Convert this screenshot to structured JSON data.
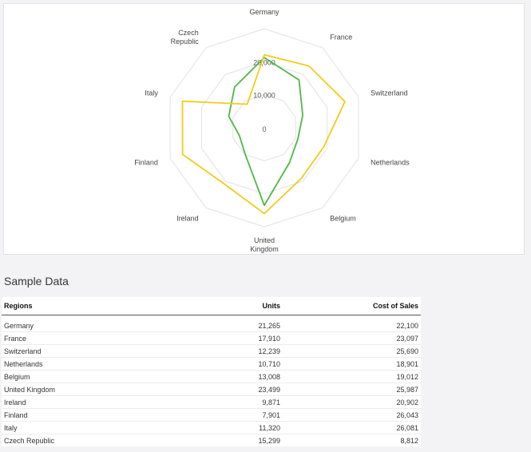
{
  "chart_data": {
    "type": "radar",
    "categories": [
      "Germany",
      "France",
      "Switzerland",
      "Netherlands",
      "Belgium",
      "United Kingdom",
      "Ireland",
      "Finland",
      "Italy",
      "Czech Republic"
    ],
    "category_labels": [
      [
        "Germany"
      ],
      [
        "France"
      ],
      [
        "Switzerland"
      ],
      [
        "Netherlands"
      ],
      [
        "Belgium"
      ],
      [
        "United",
        "Kingdom"
      ],
      [
        "Ireland"
      ],
      [
        "Finland"
      ],
      [
        "Italy"
      ],
      [
        "Czech",
        "Republic"
      ]
    ],
    "series": [
      {
        "color": "#4fb844",
        "values": [
          21265,
          17910,
          12239,
          10710,
          13008,
          23499,
          9871,
          7901,
          11320,
          15299
        ]
      },
      {
        "color": "#f2cc1a",
        "values": [
          22100,
          23097,
          25690,
          18901,
          19012,
          25987,
          20902,
          26043,
          26081,
          8812
        ]
      }
    ],
    "rlim": [
      0,
      30000
    ],
    "ticks": [
      "0",
      "10,000",
      "20,000"
    ],
    "tick_values": [
      0,
      10000,
      20000
    ],
    "grid": true
  },
  "table": {
    "title": "Sample Data",
    "headers": {
      "region": "Regions",
      "units": "Units",
      "cost": "Cost of Sales"
    },
    "rows": [
      {
        "region": "Germany",
        "units": "21,265",
        "cost": "22,100"
      },
      {
        "region": "France",
        "units": "17,910",
        "cost": "23,097"
      },
      {
        "region": "Switzerland",
        "units": "12,239",
        "cost": "25,690"
      },
      {
        "region": "Netherlands",
        "units": "10,710",
        "cost": "18,901"
      },
      {
        "region": "Belgium",
        "units": "13,008",
        "cost": "19,012"
      },
      {
        "region": "United Kingdom",
        "units": "23,499",
        "cost": "25,987"
      },
      {
        "region": "Ireland",
        "units": "9,871",
        "cost": "20,902"
      },
      {
        "region": "Finland",
        "units": "7,901",
        "cost": "26,043"
      },
      {
        "region": "Italy",
        "units": "11,320",
        "cost": "26,081"
      },
      {
        "region": "Czech Republic",
        "units": "15,299",
        "cost": "8,812"
      }
    ]
  }
}
